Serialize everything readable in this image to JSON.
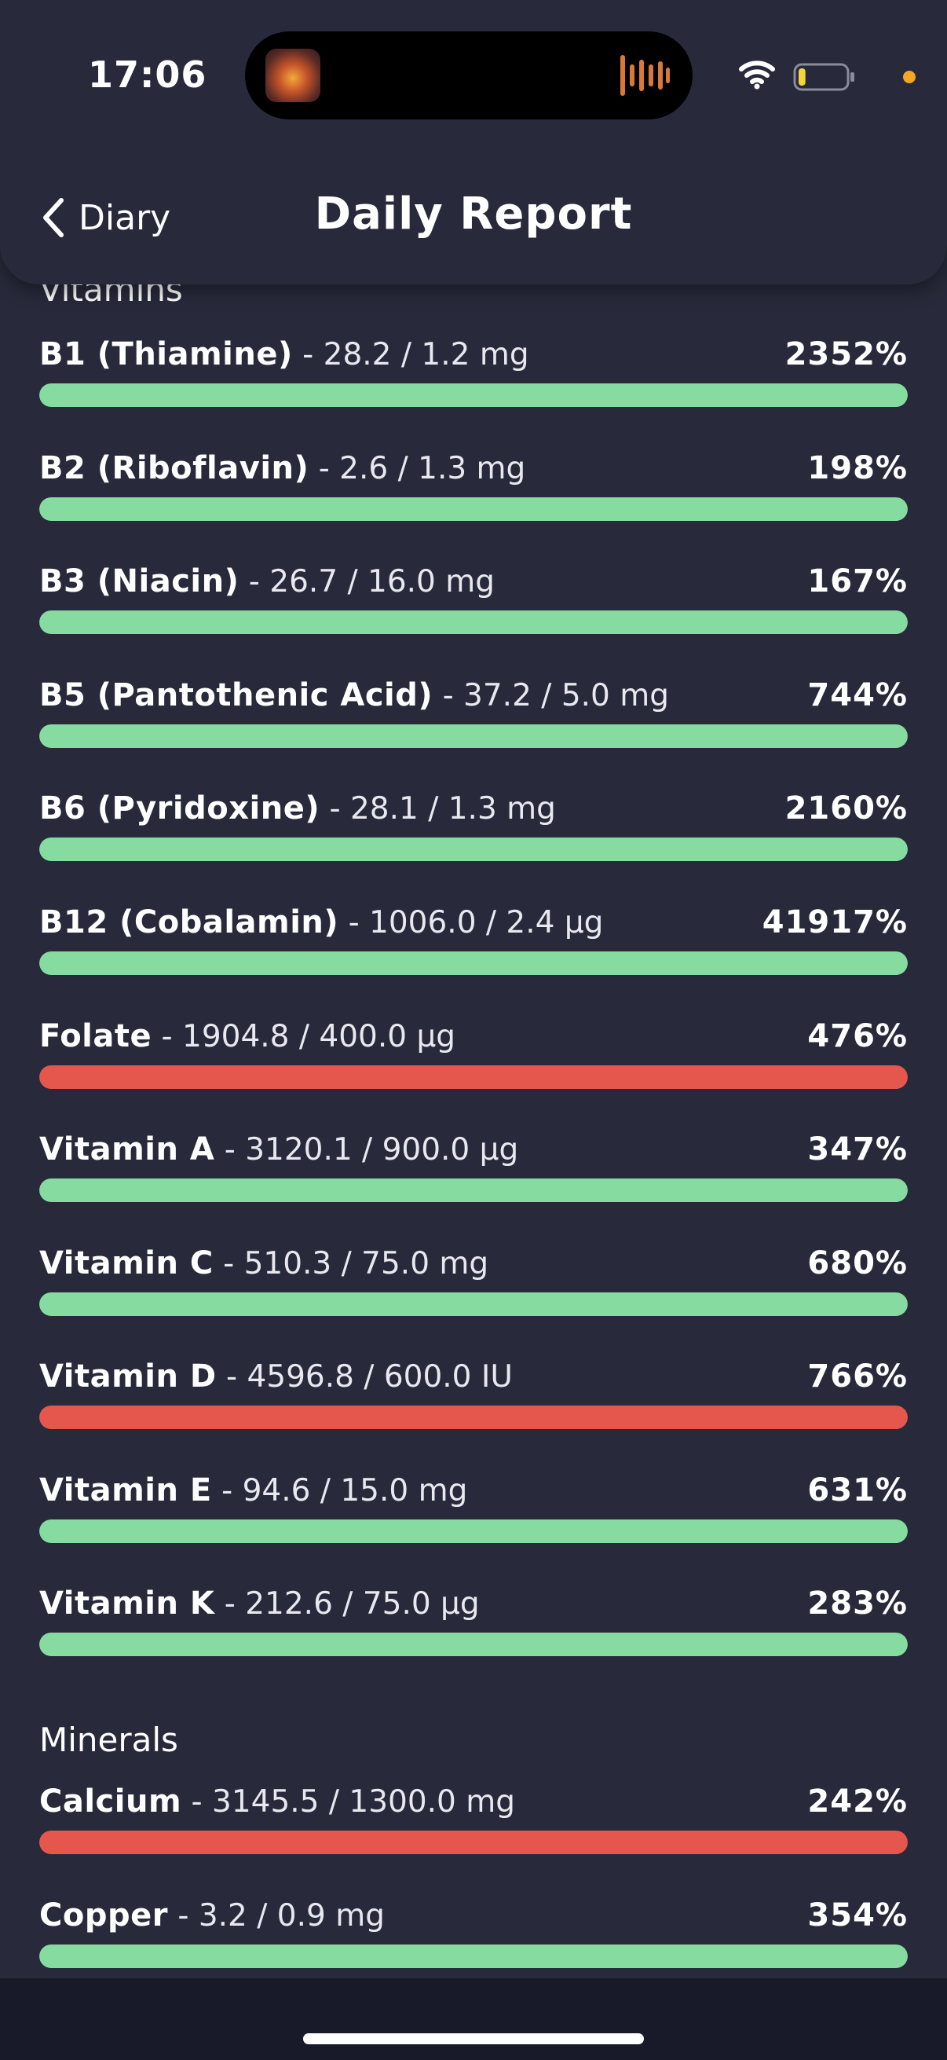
{
  "status_bar": {
    "time": "17:06",
    "battery_level": 0.15
  },
  "nav": {
    "back_label": "Diary",
    "title": "Daily Report"
  },
  "colors": {
    "background": "#282a3b",
    "ok": "#86dca0",
    "warning": "#e5574d"
  },
  "sections": [
    {
      "title": "Vitamins",
      "items": [
        {
          "name": "B1 (Thiamine)",
          "amount": " - 28.2 / 1.2 mg",
          "percent": "2352%",
          "fill": 1.0,
          "status": "ok"
        },
        {
          "name": "B2 (Riboflavin)",
          "amount": " - 2.6 / 1.3 mg",
          "percent": "198%",
          "fill": 1.0,
          "status": "ok"
        },
        {
          "name": "B3 (Niacin)",
          "amount": " - 26.7 / 16.0 mg",
          "percent": "167%",
          "fill": 1.0,
          "status": "ok"
        },
        {
          "name": "B5 (Pantothenic Acid)",
          "amount": " - 37.2 / 5.0 mg",
          "percent": "744%",
          "fill": 1.0,
          "status": "ok"
        },
        {
          "name": "B6 (Pyridoxine)",
          "amount": " - 28.1 / 1.3 mg",
          "percent": "2160%",
          "fill": 1.0,
          "status": "ok"
        },
        {
          "name": "B12 (Cobalamin)",
          "amount": " - 1006.0 / 2.4 µg",
          "percent": "41917%",
          "fill": 1.0,
          "status": "ok"
        },
        {
          "name": "Folate",
          "amount": " - 1904.8 / 400.0 µg",
          "percent": "476%",
          "fill": 1.0,
          "status": "warning"
        },
        {
          "name": "Vitamin A",
          "amount": " - 3120.1 / 900.0 µg",
          "percent": "347%",
          "fill": 1.0,
          "status": "ok"
        },
        {
          "name": "Vitamin C",
          "amount": " - 510.3 / 75.0 mg",
          "percent": "680%",
          "fill": 1.0,
          "status": "ok"
        },
        {
          "name": "Vitamin D",
          "amount": " - 4596.8 / 600.0 IU",
          "percent": "766%",
          "fill": 1.0,
          "status": "warning"
        },
        {
          "name": "Vitamin E",
          "amount": " - 94.6 / 15.0 mg",
          "percent": "631%",
          "fill": 1.0,
          "status": "ok"
        },
        {
          "name": "Vitamin K",
          "amount": " - 212.6 / 75.0 µg",
          "percent": "283%",
          "fill": 1.0,
          "status": "ok"
        }
      ]
    },
    {
      "title": "Minerals",
      "items": [
        {
          "name": "Calcium",
          "amount": " - 3145.5 / 1300.0 mg",
          "percent": "242%",
          "fill": 1.0,
          "status": "warning"
        },
        {
          "name": "Copper",
          "amount": " - 3.2 / 0.9 mg",
          "percent": "354%",
          "fill": 1.0,
          "status": "ok"
        }
      ]
    }
  ]
}
